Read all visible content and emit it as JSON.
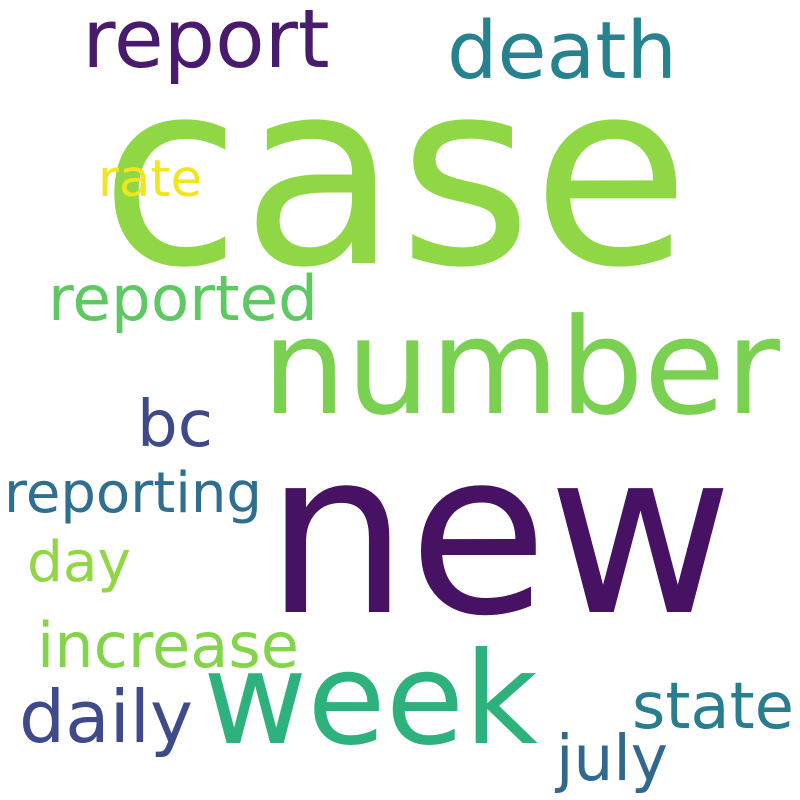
{
  "background_color": "#ffffff",
  "words": [
    {
      "text": "case",
      "color": "#8fd744"
    },
    {
      "text": "new",
      "color": "#471164"
    },
    {
      "text": "number",
      "color": "#7ad151"
    },
    {
      "text": "week",
      "color": "#2db27d"
    },
    {
      "text": "death",
      "color": "#26828e"
    },
    {
      "text": "report",
      "color": "#481b6d"
    },
    {
      "text": "reported",
      "color": "#5ec962"
    },
    {
      "text": "bc",
      "color": "#3e4989"
    },
    {
      "text": "reporting",
      "color": "#2e6e8e"
    },
    {
      "text": "day",
      "color": "#90d743"
    },
    {
      "text": "increase",
      "color": "#84d44b"
    },
    {
      "text": "daily",
      "color": "#3e4a89"
    },
    {
      "text": "state",
      "color": "#287d8e"
    },
    {
      "text": "july",
      "color": "#31688e"
    },
    {
      "text": "rate",
      "color": "#f1e51d"
    }
  ]
}
